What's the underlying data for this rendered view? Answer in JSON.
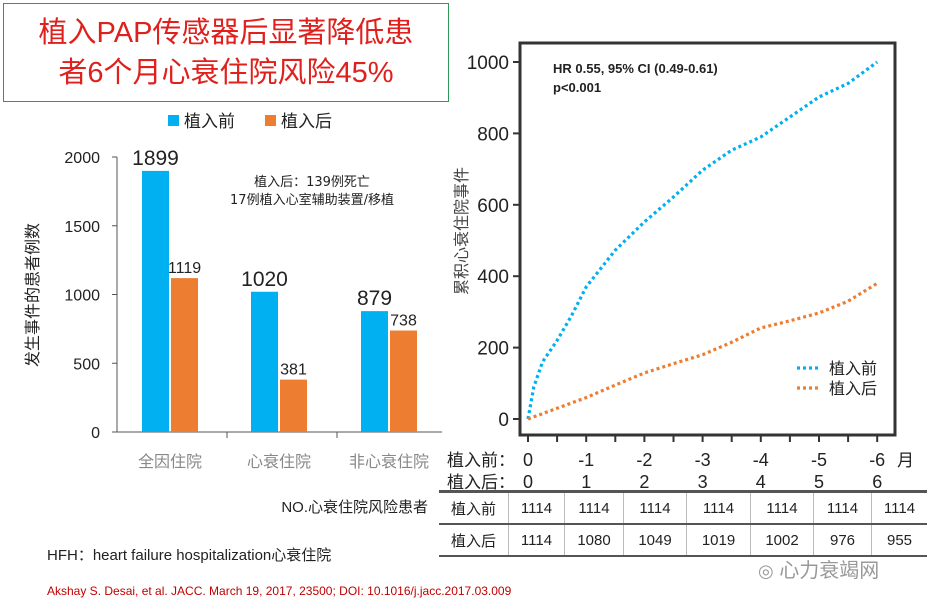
{
  "title": {
    "line1": "植入PAP传感器后显著降低患",
    "line2": "者6个月心衰住院风险45%"
  },
  "colors": {
    "before": "#00b0f0",
    "after": "#ed7d31",
    "title": "#e0201c",
    "border": "#2e9a5a",
    "citation": "#c00000"
  },
  "chart_data": [
    {
      "type": "bar",
      "ylabel": "发生事件的患者例数",
      "ylim": [
        0,
        2000
      ],
      "yticks": [
        0,
        500,
        1000,
        1500,
        2000
      ],
      "categories": [
        "全因住院",
        "心衰住院",
        "非心衰住院"
      ],
      "series": [
        {
          "name": "植入前",
          "values": [
            1899,
            1020,
            879
          ]
        },
        {
          "name": "植入后",
          "values": [
            1119,
            381,
            738
          ]
        }
      ],
      "legend": "top",
      "annotation": {
        "line1": "植入后：139例死亡",
        "line2": "17例植入心室辅助装置/移植"
      },
      "data_labels": [
        "1899",
        "1119",
        "1020",
        "381",
        "879",
        "738"
      ]
    },
    {
      "type": "line",
      "ylabel": "累积心衰住院事件",
      "ylim": [
        0,
        1000
      ],
      "yticks": [
        0,
        200,
        400,
        600,
        800,
        1000
      ],
      "xlim": [
        0,
        6
      ],
      "xunit": "月",
      "xticks_before": [
        "0",
        "-1",
        "-2",
        "-3",
        "-4",
        "-5",
        "-6"
      ],
      "xticks_after": [
        "0",
        "1",
        "2",
        "3",
        "4",
        "5",
        "6"
      ],
      "xrow_labels": [
        "植入前：",
        "植入后："
      ],
      "annotation": {
        "line1": "HR 0.55, 95% CI (0.49-0.61)",
        "line2": "p<0.001"
      },
      "legend": "bottom-right",
      "series": [
        {
          "name": "植入前",
          "x": [
            0,
            0.1,
            0.25,
            0.5,
            0.75,
            1,
            1.5,
            2,
            2.5,
            3,
            3.5,
            4,
            4.5,
            5,
            5.5,
            6
          ],
          "y": [
            0,
            90,
            160,
            220,
            290,
            370,
            473,
            552,
            622,
            697,
            753,
            790,
            846,
            902,
            940,
            1000
          ]
        },
        {
          "name": "植入后",
          "x": [
            0,
            0.5,
            1,
            1.5,
            2,
            2.5,
            3,
            3.5,
            4,
            4.5,
            5,
            5.5,
            6
          ],
          "y": [
            0,
            30,
            60,
            95,
            129,
            155,
            180,
            215,
            255,
            275,
            297,
            330,
            380
          ]
        }
      ]
    }
  ],
  "risk_table": {
    "label": "NO.心衰住院风险患者",
    "rows": [
      {
        "name": "植入前",
        "values": [
          "1114",
          "1114",
          "1114",
          "1114",
          "1114",
          "1114",
          "1114"
        ]
      },
      {
        "name": "植入后",
        "values": [
          "1114",
          "1080",
          "1049",
          "1019",
          "1002",
          "976",
          "955"
        ]
      }
    ]
  },
  "footnote": "HFH：heart failure hospitalization心衰住院",
  "citation": "Akshay S. Desai, et al. JACC. March 19, 2017, 23500; DOI: 10.1016/j.jacc.2017.03.009",
  "watermark": "心力衰竭网"
}
